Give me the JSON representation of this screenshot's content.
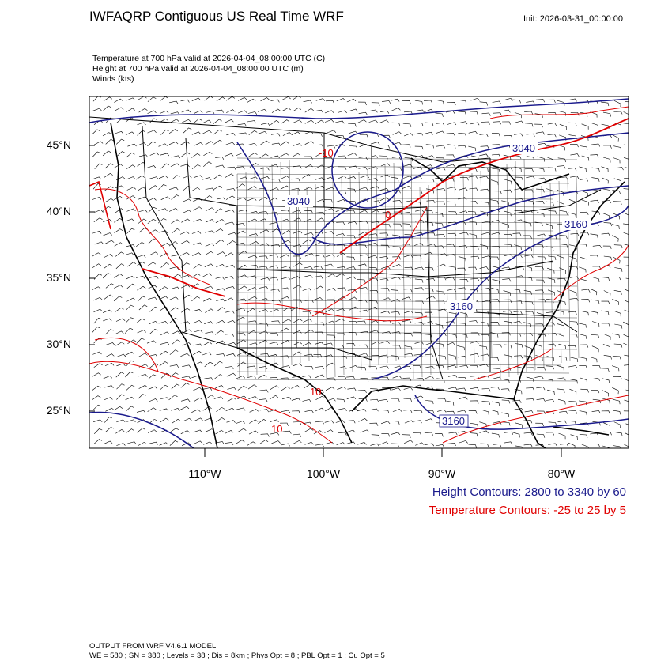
{
  "header": {
    "title": "IWFAQRP Contiguous US Real Time WRF",
    "init": "Init: 2026-03-31_00:00:00"
  },
  "subtitles": {
    "temperature": "Temperature at 700 hPa valid at 2026-04-04_08:00:00 UTC   (C)",
    "height": "Height at 700 hPa valid at 2026-04-04_08:00:00 UTC   (m)",
    "winds": "Winds   (kts)"
  },
  "axes": {
    "lat_labels": [
      "45°N",
      "40°N",
      "35°N",
      "30°N",
      "25°N"
    ],
    "lon_labels": [
      "110°W",
      "100°W",
      "90°W",
      "80°W"
    ]
  },
  "contour_labels": {
    "height": [
      "3040",
      "3040",
      "3160",
      "3160",
      "3160"
    ],
    "temperature": [
      "-10",
      "0",
      "10",
      "10"
    ]
  },
  "colors": {
    "height_contour": "#1a1a8c",
    "temperature_contour": "#e00000",
    "boundaries": "#000000",
    "wind_barbs": "#000000"
  },
  "legend": {
    "height": "Height Contours: 2800 to 3340 by 60",
    "temperature": "Temperature Contours: -25 to 25 by 5"
  },
  "footer": {
    "line1": "OUTPUT FROM WRF V4.6.1 MODEL",
    "line2": "WE = 580 ; SN = 380 ; Levels = 38 ; Dis = 8km ; Phys Opt = 8 ; PBL Opt = 1 ; Cu Opt = 5"
  }
}
